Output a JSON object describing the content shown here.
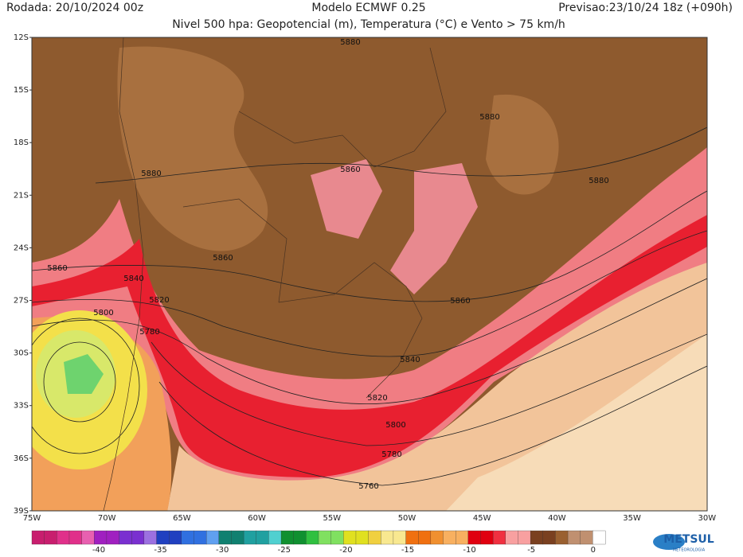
{
  "header": {
    "run": "Rodada: 20/10/2024 00z",
    "model": "Modelo ECMWF 0.25",
    "forecast": "Previsao:23/10/24 18z (+090h)",
    "subtitle": "Nivel 500 hpa: Geopotencial (m), Temperatura (°C) e Vento > 75 km/h"
  },
  "map": {
    "lat_labels": [
      "12S",
      "15S",
      "18S",
      "21S",
      "24S",
      "27S",
      "30S",
      "33S",
      "36S",
      "39S"
    ],
    "lon_labels": [
      "75W",
      "70W",
      "65W",
      "60W",
      "55W",
      "50W",
      "45W",
      "40W",
      "35W",
      "30W"
    ],
    "contour_labels": [
      5880,
      5880,
      5880,
      5880,
      5860,
      5860,
      5860,
      5860,
      5840,
      5840,
      5820,
      5820,
      5800,
      5800,
      5780,
      5780,
      5760
    ]
  },
  "colorbar": {
    "labels": [
      -40,
      -35,
      -30,
      -25,
      -20,
      -15,
      -10,
      -5,
      0
    ]
  },
  "logo": {
    "name": "METSUL",
    "tagline": "METEOROLOGIA"
  }
}
